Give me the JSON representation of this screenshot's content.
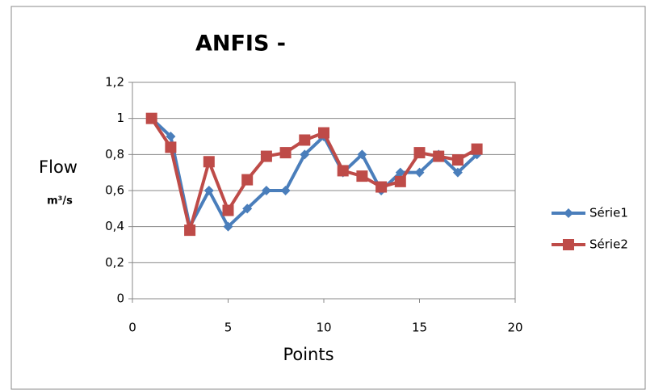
{
  "chart_data": {
    "type": "line",
    "title": "ANFIS -",
    "xlabel": "Points",
    "ylabel": "Flow",
    "yunit": "m³/s",
    "x": [
      1,
      2,
      3,
      4,
      5,
      6,
      7,
      8,
      9,
      10,
      11,
      12,
      13,
      14,
      15,
      16,
      17,
      18
    ],
    "series": [
      {
        "name": "Série1",
        "color": "#4a7ebb",
        "marker": "diamond",
        "values": [
          1.0,
          0.9,
          0.4,
          0.6,
          0.4,
          0.5,
          0.6,
          0.6,
          0.8,
          0.9,
          0.7,
          0.8,
          0.6,
          0.7,
          0.7,
          0.8,
          0.7,
          0.8
        ]
      },
      {
        "name": "Série2",
        "color": "#be4b48",
        "marker": "square",
        "values": [
          1.0,
          0.84,
          0.38,
          0.76,
          0.49,
          0.66,
          0.79,
          0.81,
          0.88,
          0.92,
          0.71,
          0.68,
          0.62,
          0.65,
          0.81,
          0.79,
          0.77,
          0.83
        ]
      }
    ],
    "xlim": [
      0,
      20
    ],
    "xticks": [
      0,
      5,
      10,
      15,
      20
    ],
    "ylim": [
      0,
      1.2
    ],
    "yticks": [
      0,
      {
        "value": 0.2,
        "label": "0,2"
      },
      {
        "value": 0.4,
        "label": "0,4"
      },
      {
        "value": 0.6,
        "label": "0,6"
      },
      {
        "value": 0.8,
        "label": "0,8"
      },
      1,
      {
        "value": 1.2,
        "label": "1,2"
      }
    ],
    "grid": true,
    "legend": "right"
  }
}
